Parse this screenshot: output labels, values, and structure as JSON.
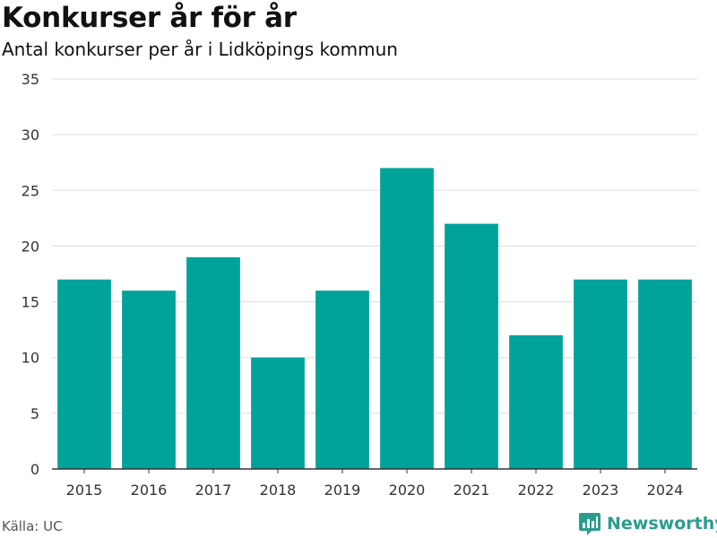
{
  "header": {
    "title": "Konkurser år för år",
    "subtitle": "Antal konkurser per år i Lidköpings kommun"
  },
  "footer": {
    "source": "Källa: UC",
    "brand": "Newsworthy"
  },
  "colors": {
    "bar": "#00a29a",
    "grid": "#dddddd",
    "axis": "#333333",
    "brand": "#2a9d8f"
  },
  "chart_data": {
    "type": "bar",
    "title": "Konkurser år för år",
    "subtitle": "Antal konkurser per år i Lidköpings kommun",
    "xlabel": "",
    "ylabel": "",
    "categories": [
      "2015",
      "2016",
      "2017",
      "2018",
      "2019",
      "2020",
      "2021",
      "2022",
      "2023",
      "2024"
    ],
    "values": [
      17,
      16,
      19,
      10,
      16,
      27,
      22,
      12,
      17,
      17
    ],
    "ylim": [
      0,
      35
    ],
    "yticks": [
      0,
      5,
      10,
      15,
      20,
      25,
      30,
      35
    ],
    "grid": true,
    "legend": "none"
  }
}
